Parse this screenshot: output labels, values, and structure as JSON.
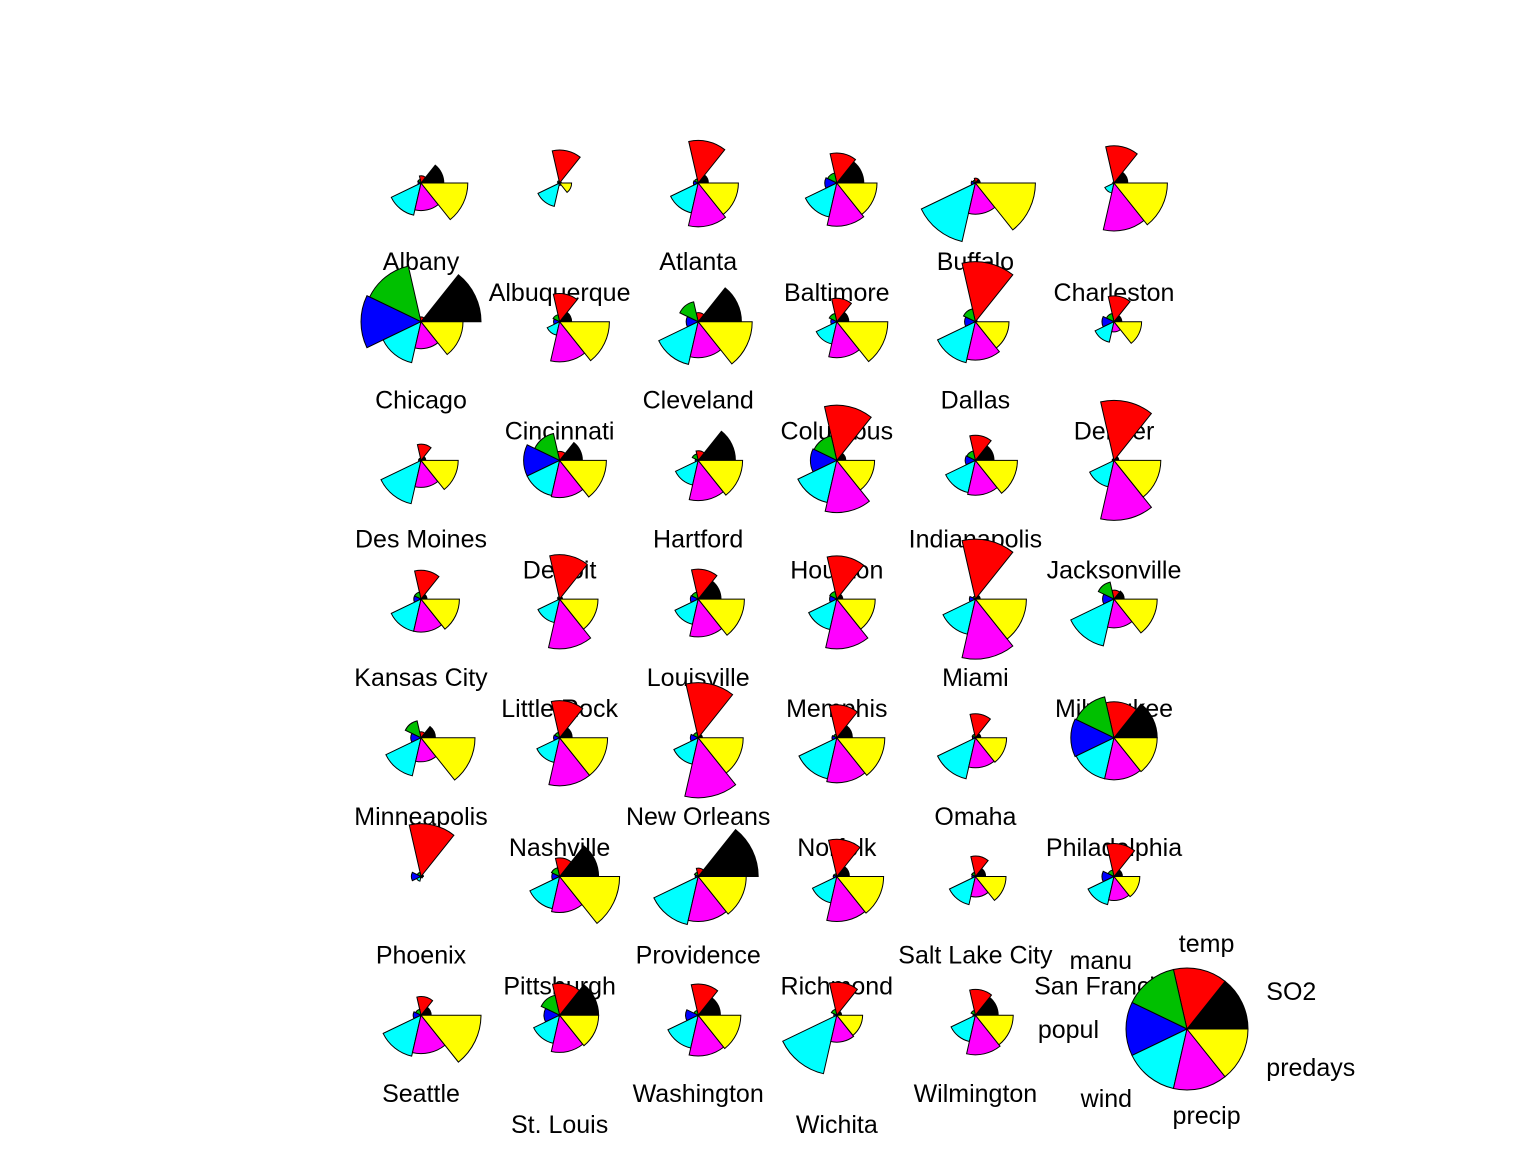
{
  "chart_data": {
    "type": "segment-star",
    "variables": [
      "SO2",
      "temp",
      "manu",
      "popul",
      "wind",
      "precip",
      "predays"
    ],
    "colors": {
      "SO2": "#000000",
      "temp": "#ff0000",
      "manu": "#00c000",
      "popul": "#0000ff",
      "wind": "#00ffff",
      "precip": "#ff00ff",
      "predays": "#ffff00"
    },
    "key": {
      "labels": [
        "SO2",
        "temp",
        "manu",
        "popul",
        "wind",
        "precip",
        "predays"
      ],
      "values": [
        1,
        1,
        1,
        1,
        1,
        1,
        1
      ]
    },
    "cities": [
      {
        "name": "Albany",
        "values": [
          0.38,
          0.12,
          0.06,
          0.05,
          0.55,
          0.46,
          0.78
        ]
      },
      {
        "name": "Albuquerque",
        "values": [
          0.03,
          0.55,
          0.04,
          0.03,
          0.4,
          0.04,
          0.2
        ]
      },
      {
        "name": "Atlanta",
        "values": [
          0.17,
          0.71,
          0.07,
          0.08,
          0.51,
          0.73,
          0.67
        ]
      },
      {
        "name": "Baltimore",
        "values": [
          0.45,
          0.5,
          0.17,
          0.2,
          0.58,
          0.72,
          0.67
        ]
      },
      {
        "name": "Buffalo",
        "values": [
          0.08,
          0.08,
          0.05,
          0.07,
          1.0,
          0.52,
          1.0
        ]
      },
      {
        "name": "Charleston",
        "values": [
          0.23,
          0.62,
          0.02,
          0.02,
          0.17,
          0.8,
          0.89
        ]
      },
      {
        "name": "Chicago",
        "values": [
          1.0,
          0.08,
          0.95,
          1.0,
          0.7,
          0.45,
          0.7
        ]
      },
      {
        "name": "Cincinnati",
        "values": [
          0.2,
          0.47,
          0.12,
          0.1,
          0.23,
          0.67,
          0.83
        ]
      },
      {
        "name": "Cleveland",
        "values": [
          0.72,
          0.15,
          0.34,
          0.2,
          0.73,
          0.6,
          0.9
        ]
      },
      {
        "name": "Columbus",
        "values": [
          0.2,
          0.39,
          0.14,
          0.1,
          0.38,
          0.6,
          0.85
        ]
      },
      {
        "name": "Dallas",
        "values": [
          0.03,
          1.0,
          0.22,
          0.18,
          0.7,
          0.64,
          0.56
        ]
      },
      {
        "name": "Denver",
        "values": [
          0.13,
          0.43,
          0.14,
          0.2,
          0.35,
          0.17,
          0.46
        ]
      },
      {
        "name": "Des Moines",
        "values": [
          0.08,
          0.27,
          0.04,
          0.04,
          0.74,
          0.45,
          0.62
        ]
      },
      {
        "name": "Detroit",
        "values": [
          0.38,
          0.15,
          0.46,
          0.6,
          0.6,
          0.62,
          0.78
        ]
      },
      {
        "name": "Hartford",
        "values": [
          0.62,
          0.16,
          0.11,
          0.05,
          0.42,
          0.67,
          0.74
        ]
      },
      {
        "name": "Houston",
        "values": [
          0.15,
          0.92,
          0.42,
          0.44,
          0.72,
          0.87,
          0.63
        ]
      },
      {
        "name": "Indianapolis",
        "values": [
          0.31,
          0.42,
          0.16,
          0.17,
          0.55,
          0.58,
          0.7
        ]
      },
      {
        "name": "Jacksonville",
        "values": [
          0.08,
          1.0,
          0.03,
          0.03,
          0.45,
          1.0,
          0.78
        ]
      },
      {
        "name": "Kansas City",
        "values": [
          0.1,
          0.48,
          0.12,
          0.12,
          0.55,
          0.55,
          0.64
        ]
      },
      {
        "name": "Little Rock",
        "values": [
          0.05,
          0.74,
          0.04,
          0.03,
          0.4,
          0.83,
          0.64
        ]
      },
      {
        "name": "Louisville",
        "values": [
          0.38,
          0.5,
          0.12,
          0.13,
          0.43,
          0.63,
          0.77
        ]
      },
      {
        "name": "Memphis",
        "values": [
          0.1,
          0.72,
          0.13,
          0.12,
          0.52,
          0.83,
          0.64
        ]
      },
      {
        "name": "Miami",
        "values": [
          0.08,
          1.0,
          0.05,
          0.1,
          0.6,
          1.0,
          0.85
        ]
      },
      {
        "name": "Milwaukee",
        "values": [
          0.17,
          0.15,
          0.29,
          0.19,
          0.8,
          0.48,
          0.72
        ]
      },
      {
        "name": "Minneapolis",
        "values": [
          0.24,
          0.1,
          0.29,
          0.17,
          0.65,
          0.4,
          0.9
        ]
      },
      {
        "name": "Nashville",
        "values": [
          0.21,
          0.62,
          0.09,
          0.1,
          0.42,
          0.8,
          0.8
        ]
      },
      {
        "name": "New Orleans",
        "values": [
          0.07,
          0.92,
          0.09,
          0.13,
          0.45,
          1.0,
          0.75
        ]
      },
      {
        "name": "Norfolk",
        "values": [
          0.26,
          0.55,
          0.06,
          0.08,
          0.7,
          0.75,
          0.8
        ]
      },
      {
        "name": "Omaha",
        "values": [
          0.09,
          0.4,
          0.06,
          0.05,
          0.7,
          0.5,
          0.52
        ]
      },
      {
        "name": "Philadelphia",
        "values": [
          0.72,
          0.6,
          0.7,
          0.72,
          0.7,
          0.7,
          0.72
        ]
      },
      {
        "name": "Phoenix",
        "values": [
          0.04,
          0.88,
          0.07,
          0.16,
          0.08,
          0.02,
          0.03
        ]
      },
      {
        "name": "Pittsburgh",
        "values": [
          0.65,
          0.31,
          0.15,
          0.13,
          0.55,
          0.6,
          1.0
        ]
      },
      {
        "name": "Providence",
        "values": [
          1.0,
          0.14,
          0.07,
          0.05,
          0.82,
          0.75,
          0.8
        ]
      },
      {
        "name": "Richmond",
        "values": [
          0.21,
          0.62,
          0.05,
          0.06,
          0.45,
          0.75,
          0.78
        ]
      },
      {
        "name": "Salt Lake City",
        "values": [
          0.17,
          0.34,
          0.07,
          0.06,
          0.48,
          0.34,
          0.51
        ]
      },
      {
        "name": "San Francisco",
        "values": [
          0.14,
          0.55,
          0.11,
          0.2,
          0.48,
          0.4,
          0.43
        ]
      },
      {
        "name": "Seattle",
        "values": [
          0.17,
          0.31,
          0.1,
          0.13,
          0.7,
          0.64,
          1.0
        ]
      },
      {
        "name": "St. Louis",
        "values": [
          0.65,
          0.53,
          0.34,
          0.26,
          0.48,
          0.62,
          0.65
        ]
      },
      {
        "name": "Washington",
        "values": [
          0.37,
          0.52,
          0.08,
          0.21,
          0.56,
          0.68,
          0.71
        ]
      },
      {
        "name": "Wichita",
        "values": [
          0.08,
          0.55,
          0.1,
          0.05,
          1.0,
          0.45,
          0.43
        ]
      },
      {
        "name": "Wilmington",
        "values": [
          0.38,
          0.43,
          0.08,
          0.04,
          0.45,
          0.66,
          0.63
        ]
      }
    ]
  }
}
